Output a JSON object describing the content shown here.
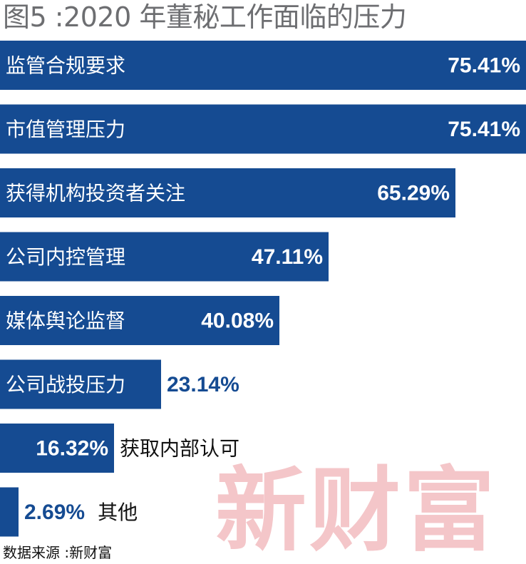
{
  "chart_title": "图5 :2020 年董秘工作面临的压力",
  "source_note": "数据来源 :新财富",
  "watermark": "新财富",
  "colors": {
    "bar": "#154b92",
    "value_on_bar": "#ffffff",
    "value_outside": "#154b92",
    "title": "#6d6e71",
    "watermark": "#f4c6c9"
  },
  "chart_data": {
    "type": "bar",
    "orientation": "horizontal",
    "title": "图5 :2020 年董秘工作面临的压力",
    "categories": [
      "监管合规要求",
      "市值管理压力",
      "获得机构投资者关注",
      "公司内控管理",
      "媒体舆论监督",
      "公司战投压力",
      "获取内部认可",
      "其他"
    ],
    "values": [
      75.41,
      75.41,
      65.29,
      47.11,
      40.08,
      23.14,
      16.32,
      2.69
    ],
    "value_labels": [
      "75.41%",
      "75.41%",
      "65.29%",
      "47.11%",
      "40.08%",
      "23.14%",
      "16.32%",
      "2.69%"
    ],
    "unit": "%",
    "xlim": [
      0,
      75.41
    ],
    "grid": false,
    "legend": false
  }
}
